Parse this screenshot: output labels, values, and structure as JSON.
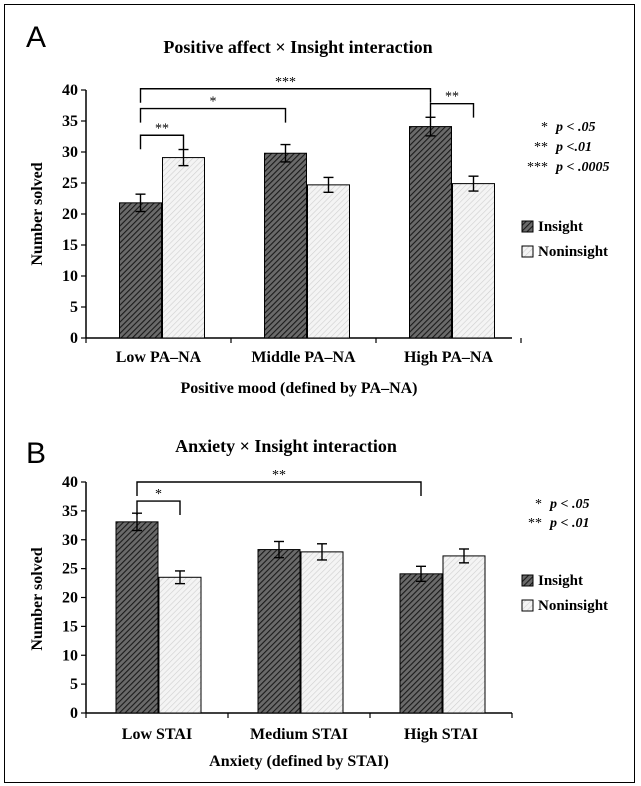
{
  "chart_data": [
    {
      "panel": "A",
      "type": "bar",
      "title": "Positive affect × Insight interaction",
      "xlabel": "Positive mood (defined by PA–NA)",
      "ylabel": "Number solved",
      "ylim": [
        0,
        40
      ],
      "yticks": [
        0,
        5,
        10,
        15,
        20,
        25,
        30,
        35,
        40
      ],
      "categories": [
        "Low PA–NA",
        "Middle PA–NA",
        "High PA–NA"
      ],
      "series": [
        {
          "name": "Insight",
          "values": [
            21.8,
            29.8,
            34.1
          ],
          "errors": [
            1.4,
            1.4,
            1.5
          ]
        },
        {
          "name": "Noninsight",
          "values": [
            29.1,
            24.7,
            24.9
          ],
          "errors": [
            1.3,
            1.2,
            1.2
          ]
        }
      ],
      "brackets": [
        {
          "stars": "***",
          "from": [
            0,
            0
          ],
          "to": [
            2,
            0
          ],
          "level": 40.2
        },
        {
          "stars": "*",
          "from": [
            0,
            0
          ],
          "to": [
            1,
            0
          ],
          "level": 37.0
        },
        {
          "stars": "**",
          "from": [
            0,
            0
          ],
          "to": [
            0,
            1
          ],
          "level": 32.7
        },
        {
          "stars": "**",
          "from": [
            2,
            0
          ],
          "to": [
            2,
            1
          ],
          "level": 37.8
        }
      ],
      "significance_key": [
        {
          "stars": "*",
          "label": "p < .05"
        },
        {
          "stars": "**",
          "label": "p <.01"
        },
        {
          "stars": "***",
          "label": "p < .0005"
        }
      ],
      "legend_position": "right"
    },
    {
      "panel": "B",
      "type": "bar",
      "title": "Anxiety × Insight interaction",
      "xlabel": "Anxiety (defined by STAI)",
      "ylabel": "Number solved",
      "ylim": [
        0,
        40
      ],
      "yticks": [
        0,
        5,
        10,
        15,
        20,
        25,
        30,
        35,
        40
      ],
      "categories": [
        "Low STAI",
        "Medium STAI",
        "High STAI"
      ],
      "series": [
        {
          "name": "Insight",
          "values": [
            33.1,
            28.3,
            24.1
          ],
          "errors": [
            1.5,
            1.4,
            1.3
          ]
        },
        {
          "name": "Noninsight",
          "values": [
            23.5,
            27.9,
            27.2
          ],
          "errors": [
            1.1,
            1.4,
            1.2
          ]
        }
      ],
      "brackets": [
        {
          "stars": "**",
          "from": [
            0,
            0
          ],
          "to": [
            2,
            0
          ],
          "level": 40.0
        },
        {
          "stars": "*",
          "from": [
            0,
            0
          ],
          "to": [
            0,
            1
          ],
          "level": 36.7
        }
      ],
      "significance_key": [
        {
          "stars": "*",
          "label": "p < .05"
        },
        {
          "stars": "**",
          "label": "p < .01"
        }
      ],
      "legend_position": "right"
    }
  ]
}
